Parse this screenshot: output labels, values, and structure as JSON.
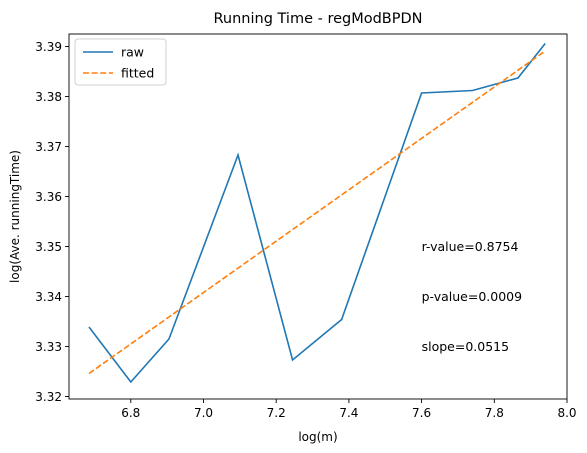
{
  "chart_data": {
    "type": "line",
    "title": "Running Time - regModBPDN",
    "xlabel": "log(m)",
    "ylabel": "log(Ave. runningTime)",
    "xlim": [
      6.63,
      8.0
    ],
    "ylim": [
      3.3195,
      3.3925
    ],
    "xticks": [
      6.8,
      7.0,
      7.2,
      7.4,
      7.6,
      7.8,
      8.0
    ],
    "xtick_labels": [
      "6.8",
      "7.0",
      "7.2",
      "7.4",
      "7.6",
      "7.8",
      "8.0"
    ],
    "yticks": [
      3.32,
      3.33,
      3.34,
      3.35,
      3.36,
      3.37,
      3.38,
      3.39
    ],
    "ytick_labels": [
      "3.32",
      "3.33",
      "3.34",
      "3.35",
      "3.36",
      "3.37",
      "3.38",
      "3.39"
    ],
    "grid": false,
    "legend": {
      "position": "top-left"
    },
    "series": [
      {
        "name": "raw",
        "color": "#1f77b4",
        "style": "solid",
        "x": [
          6.685,
          6.8,
          6.905,
          7.095,
          7.245,
          7.38,
          7.6,
          7.74,
          7.865,
          7.94
        ],
        "y": [
          3.3339,
          3.3229,
          3.3315,
          3.3683,
          3.3273,
          3.3354,
          3.3807,
          3.3812,
          3.3837,
          3.3906
        ]
      },
      {
        "name": "fitted",
        "color": "#ff7f0e",
        "style": "dashed",
        "x": [
          6.685,
          7.94
        ],
        "y": [
          3.3246,
          3.3891
        ]
      }
    ],
    "annotations": [
      {
        "text": "r-value=0.8754",
        "x": 7.6,
        "y": 3.35
      },
      {
        "text": "p-value=0.0009",
        "x": 7.6,
        "y": 3.34
      },
      {
        "text": "slope=0.0515",
        "x": 7.6,
        "y": 3.33
      }
    ]
  }
}
